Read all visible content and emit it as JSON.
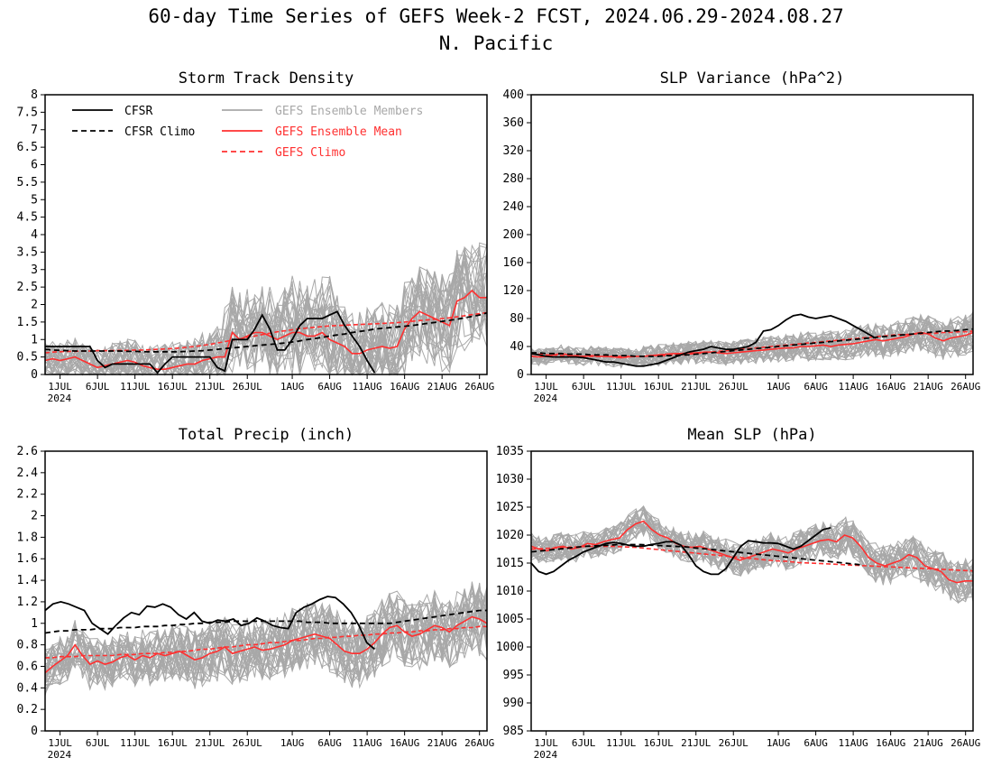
{
  "title_line1": "60-day Time Series of GEFS Week-2 FCST, 2024.06.29-2024.08.27",
  "title_line2": "N. Pacific",
  "colors": {
    "cfsr": "#000000",
    "members": "#a8a8a8",
    "ens_mean": "#ff3030",
    "gefs_climo": "#ff3030"
  },
  "legend": [
    {
      "label": "CFSR",
      "style": "solid",
      "color": "#000000"
    },
    {
      "label": "CFSR Climo",
      "style": "dashed",
      "color": "#000000"
    },
    {
      "label": "GEFS Ensemble Members",
      "style": "solid",
      "color": "#a8a8a8"
    },
    {
      "label": "GEFS Ensemble Mean",
      "style": "solid",
      "color": "#ff3030"
    },
    {
      "label": "GEFS Climo",
      "style": "dashed",
      "color": "#ff3030"
    }
  ],
  "x_ticks": [
    "1JUL",
    "6JUL",
    "11JUL",
    "16JUL",
    "21JUL",
    "26JUL",
    "1AUG",
    "6AUG",
    "11AUG",
    "16AUG",
    "21AUG",
    "26AUG"
  ],
  "x_year": "2024",
  "chart_data": [
    {
      "type": "line",
      "title": "Storm Track Density",
      "x": "days 2024-06-29 .. 2024-08-27",
      "ylim": [
        0,
        8
      ],
      "y_ticks": [
        "0",
        "0.5",
        "1",
        "1.5",
        "2",
        "2.5",
        "3",
        "3.5",
        "4",
        "4.5",
        "5",
        "5.5",
        "6",
        "6.5",
        "7",
        "7.5",
        "8"
      ],
      "series": [
        {
          "name": "CFSR",
          "values": [
            0.8,
            0.8,
            0.8,
            0.8,
            0.8,
            0.8,
            0.8,
            0.4,
            0.2,
            0.3,
            0.3,
            0.3,
            0.3,
            0.3,
            0.3,
            0.05,
            0.3,
            0.5,
            0.5,
            0.5,
            0.5,
            0.5,
            0.5,
            0.2,
            0.1,
            1.0,
            1.0,
            1.0,
            1.3,
            1.7,
            1.3,
            0.7,
            0.7,
            1.0,
            1.4,
            1.6,
            1.6,
            1.6,
            1.7,
            1.8,
            1.4,
            1.1,
            0.8,
            0.4,
            0.05
          ]
        },
        {
          "name": "CFSR Climo",
          "values": [
            0.72,
            0.7,
            0.69,
            0.68,
            0.67,
            0.67,
            0.67,
            0.67,
            0.67,
            0.67,
            0.67,
            0.66,
            0.66,
            0.65,
            0.65,
            0.65,
            0.65,
            0.65,
            0.65,
            0.66,
            0.67,
            0.68,
            0.7,
            0.72,
            0.74,
            0.76,
            0.78,
            0.8,
            0.82,
            0.84,
            0.86,
            0.88,
            0.9,
            0.93,
            0.96,
            1.0,
            1.03,
            1.06,
            1.1,
            1.13,
            1.16,
            1.2,
            1.23,
            1.26,
            1.3,
            1.32,
            1.34,
            1.36,
            1.38,
            1.4,
            1.43,
            1.46,
            1.49,
            1.52,
            1.55,
            1.58,
            1.62,
            1.66,
            1.7,
            1.76
          ]
        },
        {
          "name": "GEFS Ensemble Mean",
          "values": [
            0.4,
            0.45,
            0.4,
            0.45,
            0.5,
            0.4,
            0.3,
            0.2,
            0.25,
            0.3,
            0.35,
            0.4,
            0.35,
            0.25,
            0.2,
            0.15,
            0.15,
            0.2,
            0.25,
            0.3,
            0.3,
            0.4,
            0.45,
            0.5,
            0.5,
            1.2,
            1.0,
            1.1,
            1.2,
            1.2,
            1.1,
            1.0,
            1.1,
            1.2,
            1.2,
            1.1,
            1.1,
            1.2,
            1.0,
            0.9,
            0.8,
            0.6,
            0.6,
            0.7,
            0.75,
            0.8,
            0.75,
            0.8,
            1.3,
            1.6,
            1.8,
            1.7,
            1.6,
            1.5,
            1.4,
            2.1,
            2.2,
            2.4,
            2.2,
            2.2
          ]
        },
        {
          "name": "GEFS Climo",
          "values": [
            0.62,
            0.64,
            0.65,
            0.66,
            0.66,
            0.67,
            0.67,
            0.68,
            0.68,
            0.68,
            0.69,
            0.69,
            0.7,
            0.7,
            0.71,
            0.72,
            0.73,
            0.74,
            0.76,
            0.78,
            0.8,
            0.83,
            0.86,
            0.9,
            0.94,
            0.98,
            1.02,
            1.06,
            1.1,
            1.14,
            1.18,
            1.22,
            1.25,
            1.28,
            1.31,
            1.33,
            1.35,
            1.37,
            1.39,
            1.4,
            1.41,
            1.42,
            1.43,
            1.44,
            1.45,
            1.46,
            1.47,
            1.48,
            1.5,
            1.52,
            1.54,
            1.56,
            1.58,
            1.6,
            1.62,
            1.65,
            1.68,
            1.71,
            1.74,
            1.77
          ]
        }
      ]
    },
    {
      "type": "line",
      "title": "SLP Variance (hPa^2)",
      "ylim": [
        0,
        400
      ],
      "y_ticks": [
        "0",
        "40",
        "80",
        "120",
        "160",
        "200",
        "240",
        "280",
        "320",
        "360",
        "400"
      ],
      "series": [
        {
          "name": "CFSR",
          "values": [
            30,
            28,
            26,
            25,
            25,
            25,
            25,
            24,
            22,
            20,
            18,
            18,
            16,
            14,
            12,
            12,
            14,
            16,
            20,
            24,
            28,
            32,
            34,
            36,
            40,
            38,
            36,
            36,
            38,
            40,
            46,
            62,
            64,
            70,
            78,
            84,
            86,
            82,
            80,
            82,
            84,
            80,
            76,
            70,
            64,
            58,
            52
          ]
        },
        {
          "name": "CFSR Climo",
          "values": [
            31,
            31,
            30,
            30,
            30,
            29,
            29,
            29,
            28,
            28,
            28,
            27,
            27,
            27,
            26,
            26,
            26,
            26,
            27,
            27,
            28,
            28,
            29,
            30,
            31,
            32,
            33,
            34,
            35,
            36,
            37,
            38,
            39,
            40,
            41,
            42,
            43,
            44,
            45,
            46,
            47,
            48,
            49,
            50,
            51,
            52,
            53,
            54,
            55,
            56,
            57,
            58,
            59,
            60,
            61,
            62,
            62,
            63,
            64,
            65
          ]
        },
        {
          "name": "GEFS Ensemble Mean",
          "values": [
            26,
            25,
            26,
            28,
            30,
            28,
            26,
            26,
            27,
            26,
            26,
            25,
            24,
            25,
            26,
            26,
            27,
            28,
            29,
            30,
            30,
            31,
            31,
            32,
            32,
            31,
            30,
            31,
            32,
            33,
            34,
            35,
            36,
            37,
            38,
            38,
            40,
            40,
            41,
            42,
            40,
            42,
            43,
            44,
            46,
            48,
            50,
            48,
            50,
            52,
            54,
            58,
            60,
            58,
            52,
            48,
            52,
            54,
            56,
            60
          ]
        },
        {
          "name": "GEFS Climo",
          "values": [
            29,
            29,
            28,
            28,
            27,
            27,
            27,
            26,
            26,
            26,
            26,
            26,
            26,
            26,
            26,
            26,
            27,
            27,
            27,
            28,
            28,
            29,
            30,
            31,
            32,
            33,
            34,
            35,
            36,
            37,
            38,
            39,
            40,
            41,
            42,
            43,
            44,
            45,
            46,
            47,
            48,
            49,
            50,
            51,
            52,
            53,
            54,
            55,
            56,
            57,
            57,
            58,
            58,
            59,
            59,
            60,
            60,
            61,
            61,
            62
          ]
        }
      ]
    },
    {
      "type": "line",
      "title": "Total Precip (inch)",
      "ylim": [
        0,
        2.6
      ],
      "y_ticks": [
        "0",
        "0.2",
        "0.4",
        "0.6",
        "0.8",
        "1",
        "1.2",
        "1.4",
        "1.6",
        "1.8",
        "2",
        "2.2",
        "2.4",
        "2.6"
      ],
      "series": [
        {
          "name": "CFSR",
          "values": [
            1.12,
            1.18,
            1.2,
            1.18,
            1.15,
            1.12,
            1.0,
            0.95,
            0.9,
            0.98,
            1.05,
            1.1,
            1.08,
            1.16,
            1.15,
            1.18,
            1.15,
            1.08,
            1.04,
            1.1,
            1.02,
            1.0,
            1.03,
            1.02,
            1.04,
            0.98,
            1.0,
            1.05,
            1.02,
            0.98,
            0.96,
            0.95,
            1.1,
            1.15,
            1.18,
            1.22,
            1.25,
            1.24,
            1.18,
            1.1,
            0.98,
            0.82,
            0.76
          ]
        },
        {
          "name": "CFSR Climo",
          "values": [
            0.91,
            0.92,
            0.93,
            0.93,
            0.94,
            0.94,
            0.94,
            0.95,
            0.95,
            0.95,
            0.96,
            0.96,
            0.96,
            0.97,
            0.97,
            0.97,
            0.98,
            0.98,
            0.99,
            0.99,
            1.0,
            1.0,
            1.01,
            1.01,
            1.01,
            1.02,
            1.02,
            1.02,
            1.02,
            1.02,
            1.02,
            1.02,
            1.02,
            1.02,
            1.02,
            1.01,
            1.01,
            1.01,
            1.0,
            1.0,
            1.0,
            1.0,
            1.0,
            1.0,
            1.0,
            1.0,
            1.0,
            1.01,
            1.02,
            1.03,
            1.04,
            1.05,
            1.06,
            1.07,
            1.08,
            1.09,
            1.1,
            1.11,
            1.12,
            1.12
          ]
        },
        {
          "name": "GEFS Ensemble Mean",
          "values": [
            0.54,
            0.6,
            0.65,
            0.7,
            0.8,
            0.7,
            0.62,
            0.65,
            0.62,
            0.64,
            0.68,
            0.7,
            0.66,
            0.7,
            0.68,
            0.72,
            0.7,
            0.72,
            0.74,
            0.7,
            0.66,
            0.68,
            0.72,
            0.74,
            0.78,
            0.72,
            0.74,
            0.76,
            0.78,
            0.75,
            0.76,
            0.78,
            0.8,
            0.84,
            0.86,
            0.88,
            0.9,
            0.88,
            0.86,
            0.8,
            0.74,
            0.72,
            0.72,
            0.76,
            0.82,
            0.9,
            0.96,
            0.98,
            0.92,
            0.88,
            0.9,
            0.94,
            0.98,
            0.96,
            0.92,
            0.98,
            1.02,
            1.06,
            1.04,
            1.0
          ]
        },
        {
          "name": "GEFS Climo",
          "values": [
            0.68,
            0.68,
            0.69,
            0.69,
            0.69,
            0.7,
            0.7,
            0.7,
            0.7,
            0.7,
            0.71,
            0.71,
            0.71,
            0.72,
            0.72,
            0.72,
            0.73,
            0.73,
            0.74,
            0.74,
            0.75,
            0.76,
            0.76,
            0.77,
            0.78,
            0.78,
            0.79,
            0.8,
            0.8,
            0.81,
            0.82,
            0.82,
            0.83,
            0.84,
            0.84,
            0.85,
            0.86,
            0.86,
            0.87,
            0.87,
            0.88,
            0.88,
            0.89,
            0.89,
            0.9,
            0.9,
            0.91,
            0.91,
            0.92,
            0.92,
            0.93,
            0.93,
            0.94,
            0.94,
            0.95,
            0.95,
            0.96,
            0.96,
            0.97,
            0.97
          ]
        }
      ]
    },
    {
      "type": "line",
      "title": "Mean SLP (hPa)",
      "ylim": [
        985,
        1035
      ],
      "y_ticks": [
        "985",
        "990",
        "995",
        "1000",
        "1005",
        "1010",
        "1015",
        "1020",
        "1025",
        "1030",
        "1035"
      ],
      "series": [
        {
          "name": "CFSR",
          "values": [
            1015,
            1013.5,
            1013,
            1013.5,
            1014.5,
            1015.5,
            1016.2,
            1017,
            1017.5,
            1018,
            1018.5,
            1018.7,
            1018.5,
            1018.2,
            1018,
            1018,
            1018.3,
            1018.5,
            1018.8,
            1018.8,
            1018.2,
            1016.5,
            1014.5,
            1013.5,
            1013,
            1013,
            1014,
            1016,
            1018,
            1019,
            1018.8,
            1018.6,
            1018.6,
            1018.5,
            1018,
            1017.5,
            1018,
            1019,
            1020,
            1021,
            1021.3
          ]
        },
        {
          "name": "CFSR Climo",
          "values": [
            1017,
            1017.2,
            1017.4,
            1017.6,
            1017.8,
            1018,
            1018.1,
            1018.2,
            1018.3,
            1018.3,
            1018.3,
            1018.2,
            1018.1,
            1018,
            1017.9,
            1017.7,
            1017.5,
            1017.3,
            1017.1,
            1016.9,
            1016.7,
            1016.5,
            1016.3,
            1016.1,
            1015.9,
            1015.7,
            1015.5,
            1015.3,
            1015.1,
            1014.9,
            1014.7
          ]
        },
        {
          "name": "GEFS Ensemble Mean",
          "values": [
            1018,
            1017.5,
            1017.2,
            1017.8,
            1018,
            1017.5,
            1017.8,
            1018.5,
            1018.3,
            1018.8,
            1019.2,
            1019.5,
            1021,
            1022,
            1022.5,
            1021,
            1020,
            1019.5,
            1018.5,
            1018,
            1017.8,
            1018,
            1017.5,
            1017,
            1016.5,
            1016,
            1015.5,
            1016,
            1016.5,
            1017,
            1017.5,
            1017.2,
            1016.8,
            1017.5,
            1018,
            1018.5,
            1019,
            1019.2,
            1018.8,
            1020,
            1019.5,
            1018,
            1016,
            1015,
            1014.5,
            1015,
            1015.5,
            1016.5,
            1016,
            1014.5,
            1014,
            1013.5,
            1012,
            1011.5,
            1011.8,
            1011.8
          ]
        },
        {
          "name": "GEFS Climo",
          "values": [
            1017.5,
            1017.6,
            1017.7,
            1017.8,
            1017.9,
            1018,
            1018,
            1018,
            1017.9,
            1017.8,
            1017.6,
            1017.4,
            1017.2,
            1017,
            1016.8,
            1016.6,
            1016.4,
            1016.2,
            1016,
            1015.8,
            1015.6,
            1015.4,
            1015.3,
            1015.1,
            1015,
            1014.9,
            1014.8,
            1014.7,
            1014.6,
            1014.5,
            1014.4,
            1014.3,
            1014.2,
            1014.1,
            1014,
            1013.9,
            1013.8,
            1013.7,
            1013.6
          ]
        }
      ]
    }
  ]
}
